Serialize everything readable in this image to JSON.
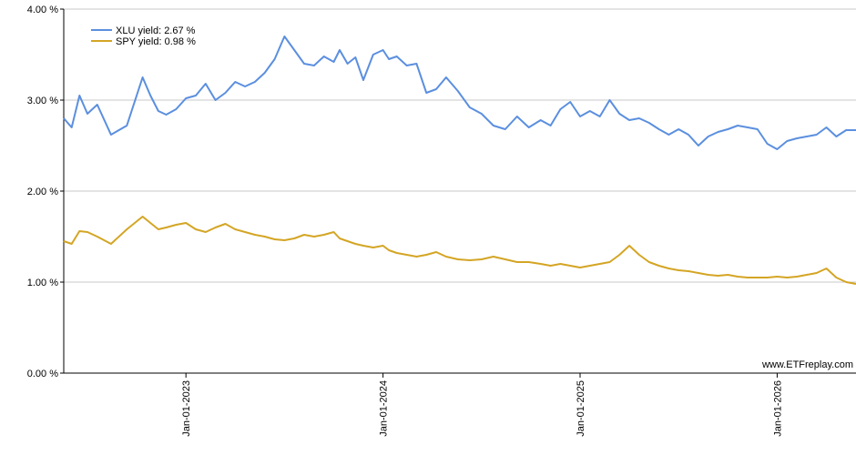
{
  "chart_data": {
    "type": "line",
    "title": "",
    "xlabel": "",
    "ylabel": "",
    "ylim": [
      0,
      4
    ],
    "y_ticks": [
      "0.00 %",
      "1.00 %",
      "2.00 %",
      "3.00 %",
      "4.00 %"
    ],
    "y_tick_values": [
      0,
      1,
      2,
      3,
      4
    ],
    "x_ticks": [
      "Jan-01-2023",
      "Jan-01-2024",
      "Jan-01-2025",
      "Jan-01-2026"
    ],
    "x_tick_values": [
      2023.0,
      2024.0,
      2025.0,
      2026.0
    ],
    "xlim": [
      2022.38,
      2026.4
    ],
    "grid": "horizontal",
    "legend_position": "top-left",
    "watermark": "www.ETFreplay.com",
    "series": [
      {
        "name": "XLU yield: 2.67 %",
        "color": "#5b8fdf",
        "x": [
          2022.38,
          2022.42,
          2022.46,
          2022.5,
          2022.55,
          2022.62,
          2022.7,
          2022.78,
          2022.82,
          2022.86,
          2022.9,
          2022.95,
          2023.0,
          2023.05,
          2023.1,
          2023.15,
          2023.2,
          2023.25,
          2023.3,
          2023.35,
          2023.4,
          2023.45,
          2023.5,
          2023.55,
          2023.6,
          2023.65,
          2023.7,
          2023.75,
          2023.78,
          2023.82,
          2023.86,
          2023.9,
          2023.95,
          2024.0,
          2024.03,
          2024.07,
          2024.12,
          2024.17,
          2024.22,
          2024.27,
          2024.32,
          2024.38,
          2024.44,
          2024.5,
          2024.56,
          2024.62,
          2024.68,
          2024.74,
          2024.8,
          2024.85,
          2024.9,
          2024.95,
          2025.0,
          2025.05,
          2025.1,
          2025.15,
          2025.2,
          2025.25,
          2025.3,
          2025.35,
          2025.4,
          2025.45,
          2025.5,
          2025.55,
          2025.6,
          2025.65,
          2025.7,
          2025.75,
          2025.8,
          2025.85,
          2025.9,
          2025.95,
          2026.0,
          2026.05,
          2026.1,
          2026.15,
          2026.2,
          2026.25,
          2026.3,
          2026.35,
          2026.4
        ],
        "values": [
          2.8,
          2.7,
          3.05,
          2.85,
          2.95,
          2.62,
          2.72,
          3.25,
          3.05,
          2.88,
          2.84,
          2.9,
          3.02,
          3.05,
          3.18,
          3.0,
          3.08,
          3.2,
          3.15,
          3.2,
          3.3,
          3.45,
          3.7,
          3.55,
          3.4,
          3.38,
          3.48,
          3.42,
          3.55,
          3.4,
          3.47,
          3.22,
          3.5,
          3.55,
          3.45,
          3.48,
          3.38,
          3.4,
          3.08,
          3.12,
          3.25,
          3.1,
          2.92,
          2.85,
          2.72,
          2.68,
          2.82,
          2.7,
          2.78,
          2.72,
          2.9,
          2.98,
          2.82,
          2.88,
          2.82,
          3.0,
          2.85,
          2.78,
          2.8,
          2.75,
          2.68,
          2.62,
          2.68,
          2.62,
          2.5,
          2.6,
          2.65,
          2.68,
          2.72,
          2.7,
          2.68,
          2.52,
          2.46,
          2.55,
          2.58,
          2.6,
          2.62,
          2.7,
          2.6,
          2.67,
          2.67
        ]
      },
      {
        "name": "SPY yield: 0.98 %",
        "color": "#d4a524",
        "x": [
          2022.38,
          2022.42,
          2022.46,
          2022.5,
          2022.55,
          2022.62,
          2022.7,
          2022.78,
          2022.82,
          2022.86,
          2022.9,
          2022.95,
          2023.0,
          2023.05,
          2023.1,
          2023.15,
          2023.2,
          2023.25,
          2023.3,
          2023.35,
          2023.4,
          2023.45,
          2023.5,
          2023.55,
          2023.6,
          2023.65,
          2023.7,
          2023.75,
          2023.78,
          2023.82,
          2023.86,
          2023.9,
          2023.95,
          2024.0,
          2024.03,
          2024.07,
          2024.12,
          2024.17,
          2024.22,
          2024.27,
          2024.32,
          2024.38,
          2024.44,
          2024.5,
          2024.56,
          2024.62,
          2024.68,
          2024.74,
          2024.8,
          2024.85,
          2024.9,
          2024.95,
          2025.0,
          2025.05,
          2025.1,
          2025.15,
          2025.2,
          2025.25,
          2025.3,
          2025.35,
          2025.4,
          2025.45,
          2025.5,
          2025.55,
          2025.6,
          2025.65,
          2025.7,
          2025.75,
          2025.8,
          2025.85,
          2025.9,
          2025.95,
          2026.0,
          2026.05,
          2026.1,
          2026.15,
          2026.2,
          2026.25,
          2026.3,
          2026.35,
          2026.4
        ],
        "values": [
          1.45,
          1.42,
          1.56,
          1.55,
          1.5,
          1.42,
          1.58,
          1.72,
          1.65,
          1.58,
          1.6,
          1.63,
          1.65,
          1.58,
          1.55,
          1.6,
          1.64,
          1.58,
          1.55,
          1.52,
          1.5,
          1.47,
          1.46,
          1.48,
          1.52,
          1.5,
          1.52,
          1.55,
          1.48,
          1.45,
          1.42,
          1.4,
          1.38,
          1.4,
          1.35,
          1.32,
          1.3,
          1.28,
          1.3,
          1.33,
          1.28,
          1.25,
          1.24,
          1.25,
          1.28,
          1.25,
          1.22,
          1.22,
          1.2,
          1.18,
          1.2,
          1.18,
          1.16,
          1.18,
          1.2,
          1.22,
          1.3,
          1.4,
          1.3,
          1.22,
          1.18,
          1.15,
          1.13,
          1.12,
          1.1,
          1.08,
          1.07,
          1.08,
          1.06,
          1.05,
          1.05,
          1.05,
          1.06,
          1.05,
          1.06,
          1.08,
          1.1,
          1.15,
          1.05,
          1.0,
          0.98
        ]
      }
    ]
  }
}
